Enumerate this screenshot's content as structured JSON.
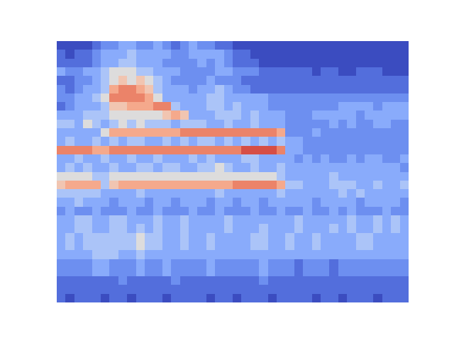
{
  "chart_data": {
    "type": "heatmap",
    "xlim": [
      -0.5,
      39.5
    ],
    "ylim": [
      29.5,
      -0.5
    ],
    "zlim": [
      0,
      10
    ],
    "tick_labels": false,
    "grid": false,
    "cells": [
      [
        0,
        0,
        0,
        0,
        1,
        2,
        2,
        3,
        3,
        2,
        2,
        3,
        2,
        1,
        2,
        3,
        2,
        2,
        1,
        1,
        0,
        0,
        0,
        0,
        0,
        0,
        0,
        0,
        0,
        0,
        0,
        0,
        0,
        0,
        0,
        0,
        0,
        0,
        0,
        0
      ],
      [
        1,
        0,
        1,
        1,
        2,
        3,
        3,
        3,
        4,
        3,
        3,
        3,
        3,
        2,
        2,
        3,
        3,
        3,
        3,
        2,
        1,
        1,
        0,
        0,
        0,
        0,
        0,
        0,
        0,
        0,
        0,
        0,
        0,
        0,
        0,
        0,
        0,
        0,
        0,
        0
      ],
      [
        1,
        1,
        1,
        1,
        2,
        3,
        3,
        4,
        4,
        3,
        3,
        3,
        2,
        2,
        2,
        2,
        3,
        2,
        3,
        2,
        1,
        1,
        1,
        0,
        0,
        0,
        0,
        0,
        0,
        0,
        0,
        0,
        0,
        0,
        0,
        0,
        0,
        0,
        0,
        0
      ],
      [
        3,
        2,
        2,
        3,
        3,
        4,
        5,
        5,
        5,
        4,
        4,
        3,
        3,
        3,
        2,
        2,
        2,
        2,
        3,
        3,
        2,
        2,
        2,
        1,
        1,
        1,
        1,
        1,
        1,
        0,
        1,
        1,
        0,
        0,
        1,
        1,
        1,
        0,
        0,
        0
      ],
      [
        1,
        1,
        2,
        2,
        3,
        4,
        5,
        6,
        5,
        6,
        5,
        4,
        3,
        2,
        2,
        2,
        2,
        3,
        2,
        2,
        2,
        1,
        1,
        1,
        1,
        1,
        1,
        1,
        1,
        1,
        1,
        1,
        1,
        1,
        1,
        1,
        1,
        1,
        1,
        1
      ],
      [
        2,
        1,
        2,
        3,
        3,
        4,
        7,
        8,
        8,
        7,
        6,
        4,
        3,
        3,
        3,
        2,
        3,
        3,
        4,
        3,
        2,
        2,
        1,
        1,
        1,
        1,
        1,
        1,
        1,
        1,
        1,
        1,
        1,
        1,
        1,
        1,
        1,
        1,
        1,
        1
      ],
      [
        2,
        2,
        3,
        3,
        4,
        5,
        8,
        8,
        8,
        8,
        7,
        5,
        3,
        3,
        3,
        3,
        3,
        4,
        4,
        3,
        3,
        3,
        3,
        3,
        2,
        2,
        2,
        2,
        2,
        2,
        2,
        2,
        2,
        2,
        2,
        2,
        2,
        2,
        2,
        2
      ],
      [
        1,
        2,
        3,
        3,
        3,
        4,
        6,
        6,
        7,
        7,
        7,
        8,
        8,
        4,
        3,
        3,
        3,
        4,
        4,
        3,
        4,
        3,
        3,
        3,
        2,
        2,
        2,
        2,
        2,
        2,
        2,
        2,
        3,
        3,
        3,
        3,
        2,
        3,
        3,
        3
      ],
      [
        3,
        3,
        3,
        4,
        4,
        4,
        5,
        5,
        5,
        5,
        5,
        5,
        6,
        7,
        6,
        3,
        3,
        3,
        4,
        4,
        4,
        3,
        4,
        3,
        3,
        3,
        2,
        2,
        2,
        3,
        3,
        3,
        3,
        3,
        2,
        3,
        3,
        3,
        3,
        3
      ],
      [
        4,
        4,
        3,
        5,
        4,
        3,
        4,
        5,
        4,
        5,
        4,
        4,
        4,
        3,
        4,
        4,
        4,
        3,
        3,
        4,
        3,
        3,
        4,
        3,
        3,
        3,
        2,
        2,
        2,
        2,
        2,
        3,
        2,
        3,
        2,
        2,
        3,
        3,
        2,
        2
      ],
      [
        3,
        3,
        3,
        3,
        3,
        5,
        7,
        7,
        7,
        7,
        7,
        7,
        7,
        7,
        8,
        8,
        8,
        8,
        8,
        8,
        8,
        8,
        8,
        8,
        8,
        7,
        2,
        2,
        2,
        3,
        2,
        2,
        2,
        2,
        2,
        2,
        2,
        2,
        2,
        2
      ],
      [
        3,
        4,
        3,
        3,
        4,
        3,
        4,
        3,
        4,
        4,
        3,
        3,
        4,
        3,
        4,
        3,
        4,
        4,
        3,
        4,
        3,
        4,
        3,
        4,
        3,
        4,
        3,
        3,
        2,
        2,
        2,
        2,
        2,
        2,
        2,
        2,
        2,
        2,
        2,
        2
      ],
      [
        8,
        8,
        8,
        8,
        7,
        7,
        8,
        8,
        8,
        8,
        8,
        8,
        8,
        8,
        8,
        8,
        8,
        8,
        8,
        8,
        8,
        9,
        9,
        9,
        9,
        8,
        3,
        3,
        2,
        2,
        2,
        2,
        2,
        2,
        2,
        2,
        2,
        2,
        2,
        2
      ],
      [
        3,
        3,
        4,
        3,
        3,
        4,
        3,
        3,
        4,
        3,
        3,
        4,
        3,
        3,
        3,
        4,
        3,
        4,
        3,
        3,
        3,
        4,
        4,
        3,
        3,
        3,
        3,
        2,
        3,
        2,
        3,
        2,
        2,
        3,
        2,
        3,
        3,
        2,
        2,
        3
      ],
      [
        3,
        4,
        3,
        4,
        3,
        3,
        4,
        3,
        3,
        4,
        4,
        3,
        4,
        4,
        3,
        3,
        4,
        4,
        5,
        4,
        3,
        3,
        4,
        3,
        3,
        4,
        3,
        3,
        3,
        3,
        3,
        3,
        3,
        3,
        3,
        3,
        3,
        3,
        3,
        2
      ],
      [
        5,
        5,
        5,
        5,
        4,
        4,
        5,
        5,
        5,
        5,
        5,
        5,
        5,
        5,
        5,
        5,
        5,
        5,
        5,
        5,
        5,
        5,
        5,
        5,
        5,
        4,
        3,
        3,
        3,
        3,
        3,
        4,
        3,
        3,
        3,
        3,
        3,
        3,
        3,
        3
      ],
      [
        6,
        7,
        7,
        7,
        7,
        4,
        6,
        7,
        7,
        7,
        7,
        7,
        7,
        7,
        7,
        7,
        7,
        7,
        7,
        7,
        8,
        8,
        8,
        8,
        8,
        7,
        4,
        4,
        3,
        3,
        3,
        4,
        4,
        4,
        3,
        3,
        4,
        3,
        3,
        4
      ],
      [
        4,
        4,
        4,
        4,
        4,
        3,
        3,
        3,
        3,
        4,
        3,
        3,
        3,
        3,
        3,
        3,
        3,
        3,
        4,
        3,
        3,
        3,
        3,
        3,
        3,
        4,
        3,
        3,
        3,
        3,
        3,
        3,
        4,
        3,
        4,
        3,
        3,
        3,
        3,
        3
      ],
      [
        3,
        3,
        4,
        3,
        3,
        3,
        2,
        3,
        3,
        3,
        2,
        3,
        3,
        2,
        3,
        3,
        3,
        2,
        3,
        3,
        2,
        3,
        3,
        2,
        3,
        3,
        3,
        3,
        3,
        2,
        3,
        3,
        3,
        3,
        2,
        3,
        3,
        3,
        3,
        2
      ],
      [
        2,
        3,
        2,
        2,
        3,
        2,
        2,
        2,
        3,
        2,
        2,
        3,
        2,
        2,
        2,
        3,
        2,
        2,
        3,
        2,
        2,
        2,
        3,
        2,
        2,
        3,
        2,
        2,
        3,
        2,
        2,
        3,
        2,
        3,
        2,
        2,
        2,
        3,
        2,
        2
      ],
      [
        3,
        3,
        4,
        4,
        3,
        3,
        4,
        4,
        3,
        3,
        3,
        4,
        3,
        3,
        4,
        3,
        3,
        3,
        3,
        4,
        3,
        3,
        3,
        3,
        3,
        3,
        3,
        4,
        3,
        3,
        3,
        3,
        3,
        4,
        3,
        3,
        4,
        3,
        4,
        3
      ],
      [
        3,
        3,
        4,
        4,
        3,
        3,
        4,
        4,
        3,
        4,
        3,
        4,
        3,
        3,
        4,
        3,
        3,
        3,
        3,
        4,
        3,
        3,
        3,
        4,
        3,
        3,
        3,
        4,
        3,
        3,
        3,
        4,
        3,
        4,
        3,
        3,
        4,
        3,
        4,
        3
      ],
      [
        3,
        4,
        3,
        4,
        4,
        4,
        4,
        4,
        4,
        5,
        4,
        4,
        3,
        3,
        4,
        3,
        3,
        4,
        3,
        3,
        3,
        3,
        4,
        4,
        3,
        3,
        4,
        3,
        3,
        4,
        3,
        3,
        3,
        3,
        4,
        4,
        3,
        3,
        3,
        3
      ],
      [
        3,
        4,
        3,
        4,
        4,
        4,
        4,
        4,
        4,
        5,
        4,
        4,
        3,
        3,
        4,
        3,
        3,
        4,
        3,
        3,
        3,
        3,
        4,
        4,
        3,
        3,
        4,
        3,
        3,
        4,
        3,
        3,
        3,
        3,
        4,
        4,
        3,
        3,
        3,
        3
      ],
      [
        3,
        3,
        3,
        3,
        4,
        4,
        4,
        3,
        3,
        4,
        3,
        3,
        3,
        3,
        3,
        3,
        3,
        3,
        3,
        3,
        3,
        3,
        3,
        3,
        3,
        3,
        3,
        3,
        3,
        3,
        3,
        3,
        3,
        3,
        3,
        3,
        3,
        3,
        3,
        3
      ],
      [
        2,
        2,
        2,
        2,
        3,
        3,
        2,
        2,
        2,
        3,
        2,
        2,
        3,
        2,
        2,
        2,
        2,
        3,
        2,
        2,
        2,
        2,
        2,
        3,
        2,
        2,
        2,
        1,
        2,
        2,
        2,
        1,
        2,
        2,
        2,
        2,
        2,
        2,
        2,
        2
      ],
      [
        2,
        2,
        2,
        2,
        3,
        3,
        2,
        2,
        2,
        3,
        2,
        2,
        3,
        2,
        2,
        2,
        2,
        3,
        2,
        2,
        2,
        2,
        2,
        3,
        2,
        2,
        2,
        1,
        2,
        2,
        2,
        1,
        2,
        2,
        2,
        2,
        2,
        2,
        2,
        2
      ],
      [
        1,
        1,
        1,
        1,
        1,
        1,
        1,
        2,
        1,
        1,
        1,
        1,
        1,
        2,
        1,
        1,
        1,
        1,
        1,
        1,
        1,
        1,
        1,
        2,
        1,
        1,
        1,
        1,
        1,
        1,
        1,
        1,
        1,
        1,
        1,
        1,
        1,
        1,
        1,
        1
      ],
      [
        1,
        1,
        1,
        1,
        1,
        1,
        1,
        1,
        1,
        1,
        1,
        1,
        1,
        1,
        1,
        1,
        1,
        1,
        1,
        1,
        1,
        1,
        1,
        1,
        1,
        1,
        1,
        1,
        1,
        1,
        1,
        1,
        1,
        1,
        1,
        1,
        1,
        1,
        1,
        1
      ],
      [
        1,
        0,
        1,
        1,
        1,
        0,
        1,
        1,
        0,
        1,
        1,
        1,
        0,
        1,
        1,
        1,
        1,
        0,
        1,
        1,
        0,
        1,
        1,
        1,
        0,
        1,
        1,
        1,
        1,
        0,
        1,
        1,
        0,
        1,
        1,
        1,
        0,
        1,
        1,
        1
      ]
    ]
  }
}
